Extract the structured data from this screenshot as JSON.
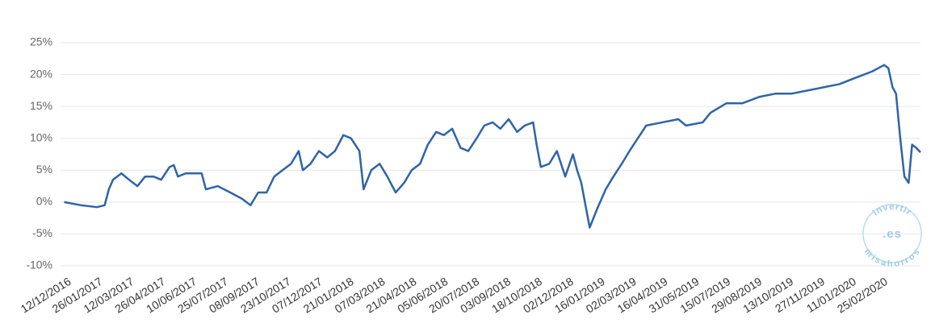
{
  "chart_data": {
    "type": "line",
    "x": [
      "01/12/2016",
      "25/12/2016",
      "17/01/2017",
      "28/01/2017",
      "03/02/2017",
      "09/02/2017",
      "21/02/2017",
      "04/03/2017",
      "16/03/2017",
      "27/03/2017",
      "08/04/2017",
      "19/04/2017",
      "01/05/2017",
      "07/05/2017",
      "13/05/2017",
      "24/05/2017",
      "16/06/2017",
      "22/06/2017",
      "09/07/2017",
      "27/07/2017",
      "13/08/2017",
      "25/08/2017",
      "05/09/2017",
      "17/09/2017",
      "28/09/2017",
      "10/10/2017",
      "22/10/2017",
      "02/11/2017",
      "08/11/2017",
      "19/11/2017",
      "01/12/2017",
      "13/12/2017",
      "24/12/2017",
      "05/01/2018",
      "16/01/2018",
      "28/01/2018",
      "03/02/2018",
      "14/02/2018",
      "26/02/2018",
      "09/03/2018",
      "21/03/2018",
      "02/04/2018",
      "13/04/2018",
      "25/04/2018",
      "06/05/2018",
      "18/05/2018",
      "29/05/2018",
      "10/06/2018",
      "22/06/2018",
      "03/07/2018",
      "15/07/2018",
      "26/07/2018",
      "07/08/2018",
      "18/08/2018",
      "30/08/2018",
      "11/09/2018",
      "22/09/2018",
      "04/10/2018",
      "09/10/2018",
      "15/10/2018",
      "27/10/2018",
      "07/11/2018",
      "19/11/2018",
      "30/11/2018",
      "06/12/2018",
      "12/12/2018",
      "24/12/2018",
      "04/01/2019",
      "16/01/2019",
      "27/01/2019",
      "08/02/2019",
      "19/02/2019",
      "03/03/2019",
      "15/03/2019",
      "07/04/2019",
      "30/04/2019",
      "11/05/2019",
      "04/06/2019",
      "15/06/2019",
      "08/07/2019",
      "31/07/2019",
      "24/08/2019",
      "16/09/2019",
      "09/10/2019",
      "01/11/2019",
      "24/11/2019",
      "17/12/2019",
      "09/01/2020",
      "02/02/2020",
      "19/02/2020",
      "25/02/2020",
      "02/03/2020",
      "07/03/2020",
      "13/03/2020",
      "19/03/2020",
      "25/03/2020",
      "30/03/2020",
      "05/04/2020",
      "11/04/2020"
    ],
    "series": [
      {
        "color": "#2e64a8",
        "values": [
          0,
          -0.5,
          -0.8,
          -0.5,
          2,
          3.5,
          4.5,
          3.5,
          2.5,
          4,
          4,
          3.5,
          5.5,
          5.8,
          4,
          4.5,
          4.5,
          2,
          2.5,
          1.5,
          0.5,
          -0.5,
          1.5,
          1.5,
          4,
          5,
          6,
          8,
          5,
          6,
          8,
          7,
          8,
          10.5,
          10,
          8,
          2,
          5,
          6,
          4,
          1.5,
          3,
          5,
          6,
          9,
          11,
          10.5,
          11.5,
          8.5,
          8,
          10,
          12,
          12.5,
          11.5,
          13,
          11,
          12,
          12.5,
          9,
          5.5,
          6,
          8,
          4,
          7.5,
          5,
          3,
          -4,
          -1,
          2,
          4,
          6,
          8,
          10,
          12,
          12.5,
          13,
          12,
          12.5,
          14,
          15.5,
          15.5,
          16.5,
          17,
          17,
          17.5,
          18,
          18.5,
          19.5,
          20.5,
          21.5,
          21,
          18,
          17,
          10,
          4,
          3,
          9,
          8.5,
          7.8
        ]
      }
    ],
    "xlim": [
      "01/12/2016",
      "11/04/2020"
    ],
    "xticks": [
      "12/12/2016",
      "26/01/2017",
      "12/03/2017",
      "26/04/2017",
      "10/06/2017",
      "25/07/2017",
      "08/09/2017",
      "23/10/2017",
      "07/12/2017",
      "21/01/2018",
      "07/03/2018",
      "21/04/2018",
      "05/06/2018",
      "20/07/2018",
      "03/09/2018",
      "18/10/2018",
      "02/12/2018",
      "16/01/2019",
      "02/03/2019",
      "16/04/2019",
      "31/05/2019",
      "15/07/2019",
      "29/08/2019",
      "13/10/2019",
      "27/11/2019",
      "11/01/2020",
      "25/02/2020"
    ],
    "ylim": [
      -10,
      25
    ],
    "yticks": [
      {
        "value": -10,
        "label": "-10%"
      },
      {
        "value": -5,
        "label": "-5%"
      },
      {
        "value": 0,
        "label": "0%"
      },
      {
        "value": 5,
        "label": "5%"
      },
      {
        "value": 10,
        "label": "10%"
      },
      {
        "value": 15,
        "label": "15%"
      },
      {
        "value": 20,
        "label": "20%"
      },
      {
        "value": 25,
        "label": "25%"
      }
    ],
    "grid": true,
    "watermark": {
      "top": "invertir",
      "middle": ".es",
      "bottom": "misahorros"
    }
  }
}
